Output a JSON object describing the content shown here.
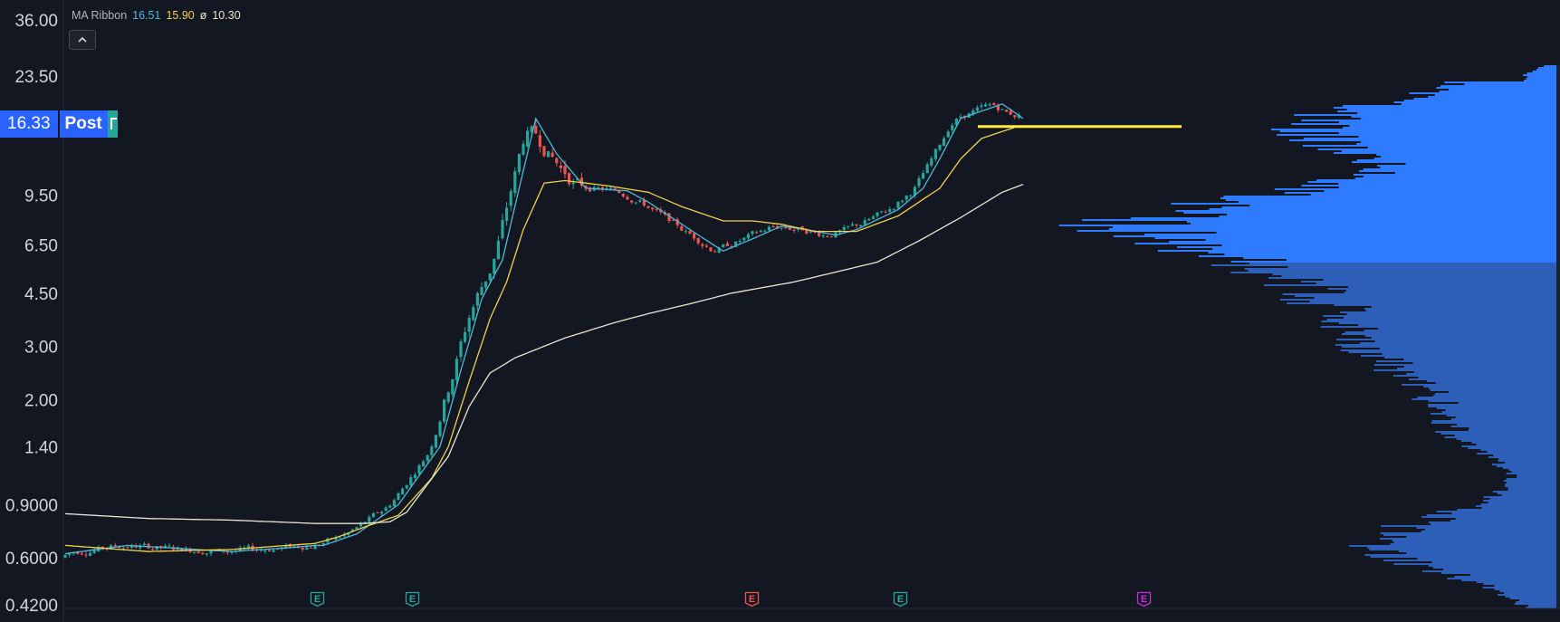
{
  "legend": {
    "indicator_name": "MA Ribbon",
    "ma1": "16.51",
    "ma2": "15.90",
    "ma3_symbol": "ø",
    "ma3": "10.30",
    "collapse_icon": "chevron-up-icon"
  },
  "price_tag": {
    "price": "16.33",
    "session": "Post",
    "flag_icon": "flag-icon"
  },
  "colors": {
    "background": "#131722",
    "up": "#26a69a",
    "down": "#ef5350",
    "ma_fast": "#4fb8d8",
    "ma_mid": "#f2d04b",
    "ma_slow": "#e8e6d0",
    "support_line": "#ffeb3b",
    "volume_profile_upper": "#2f7bff",
    "volume_profile_lower": "#2e5fb8",
    "earnings_past": "#26a69a",
    "earnings_negative": "#ef5350",
    "earnings_upcoming": "#c62fd9"
  },
  "earnings": [
    {
      "label": "E",
      "type": "past"
    },
    {
      "label": "E",
      "type": "past"
    },
    {
      "label": "E",
      "type": "negative"
    },
    {
      "label": "E",
      "type": "past"
    },
    {
      "label": "E",
      "type": "upcoming"
    }
  ],
  "chart_data": {
    "type": "candlestick",
    "scale": "log",
    "y_tick_labels": [
      "36.00",
      "23.50",
      "16.33",
      "9.50",
      "6.50",
      "4.50",
      "3.00",
      "2.00",
      "1.40",
      "0.9000",
      "0.6000",
      "0.4200"
    ],
    "y_ticks": [
      36.0,
      23.5,
      9.5,
      6.5,
      4.5,
      3.0,
      2.0,
      1.4,
      0.9,
      0.6,
      0.42
    ],
    "ylim": [
      0.42,
      36.0
    ],
    "last_price": 16.33,
    "support_level": 16.0,
    "bars_count": 230,
    "series": [
      {
        "name": "MA Ribbon 16.51",
        "role": "ma_fast",
        "anchors": [
          [
            0,
            0.62
          ],
          [
            15,
            0.66
          ],
          [
            40,
            0.63
          ],
          [
            55,
            0.65
          ],
          [
            60,
            0.66
          ],
          [
            62,
            0.66
          ],
          [
            70,
            0.72
          ],
          [
            80,
            0.9
          ],
          [
            90,
            1.4
          ],
          [
            95,
            2.5
          ],
          [
            100,
            4.3
          ],
          [
            105,
            5.8
          ],
          [
            109,
            10
          ],
          [
            113,
            17
          ],
          [
            118,
            13
          ],
          [
            125,
            10
          ],
          [
            135,
            9.8
          ],
          [
            140,
            9
          ],
          [
            150,
            7.3
          ],
          [
            158,
            6.2
          ],
          [
            165,
            6.8
          ],
          [
            172,
            7.5
          ],
          [
            178,
            7.3
          ],
          [
            185,
            7.0
          ],
          [
            190,
            7.3
          ],
          [
            200,
            8.5
          ],
          [
            206,
            10
          ],
          [
            210,
            12.5
          ],
          [
            215,
            17
          ],
          [
            225,
            19
          ],
          [
            230,
            17
          ]
        ]
      },
      {
        "name": "MA Ribbon 15.90",
        "role": "ma_mid",
        "anchors": [
          [
            0,
            0.66
          ],
          [
            20,
            0.63
          ],
          [
            40,
            0.64
          ],
          [
            60,
            0.67
          ],
          [
            65,
            0.7
          ],
          [
            72,
            0.76
          ],
          [
            80,
            0.83
          ],
          [
            88,
            1.1
          ],
          [
            92,
            1.4
          ],
          [
            97,
            2.3
          ],
          [
            102,
            3.7
          ],
          [
            106,
            4.9
          ],
          [
            110,
            7.3
          ],
          [
            115,
            10.4
          ],
          [
            120,
            10.6
          ],
          [
            130,
            10.2
          ],
          [
            140,
            9.7
          ],
          [
            148,
            8.7
          ],
          [
            158,
            7.8
          ],
          [
            165,
            7.8
          ],
          [
            172,
            7.6
          ],
          [
            180,
            7.2
          ],
          [
            190,
            7.2
          ],
          [
            200,
            8.1
          ],
          [
            210,
            10
          ],
          [
            215,
            12.5
          ],
          [
            220,
            14.6
          ],
          [
            228,
            15.9
          ]
        ]
      },
      {
        "name": "MA Ribbon 10.30",
        "role": "ma_slow",
        "anchors": [
          [
            0,
            0.84
          ],
          [
            20,
            0.81
          ],
          [
            40,
            0.8
          ],
          [
            60,
            0.78
          ],
          [
            72,
            0.78
          ],
          [
            78,
            0.79
          ],
          [
            82,
            0.85
          ],
          [
            92,
            1.3
          ],
          [
            97,
            1.9
          ],
          [
            102,
            2.45
          ],
          [
            108,
            2.75
          ],
          [
            120,
            3.2
          ],
          [
            132,
            3.6
          ],
          [
            140,
            3.85
          ],
          [
            150,
            4.15
          ],
          [
            160,
            4.5
          ],
          [
            175,
            4.9
          ],
          [
            195,
            5.7
          ],
          [
            205,
            6.7
          ],
          [
            215,
            8.0
          ],
          [
            225,
            9.7
          ],
          [
            230,
            10.3
          ]
        ]
      }
    ]
  }
}
